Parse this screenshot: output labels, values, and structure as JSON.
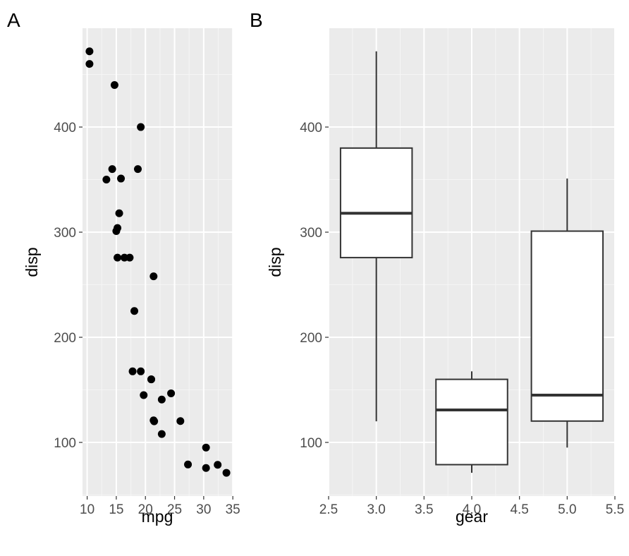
{
  "figure": {
    "panel_labels": [
      "A",
      "B"
    ]
  },
  "colors": {
    "panel_background": "#ebebeb",
    "grid_major": "#ffffff",
    "grid_minor": "#f5f5f5",
    "point": "#000000",
    "box_fill": "#ffffff",
    "box_line": "#333333",
    "tick_text": "#4d4d4d"
  },
  "chart_data": [
    {
      "id": "A",
      "type": "scatter",
      "title": "A",
      "xlabel": "mpg",
      "ylabel": "disp",
      "xlim": [
        9.2,
        35.1
      ],
      "ylim": [
        49,
        494
      ],
      "x_ticks": [
        10,
        15,
        20,
        25,
        30,
        35
      ],
      "x_tick_labels": [
        "10",
        "15",
        "20",
        "25",
        "30",
        "35"
      ],
      "y_ticks": [
        100,
        200,
        300,
        400
      ],
      "y_tick_labels": [
        "100",
        "200",
        "300",
        "400"
      ],
      "grid": true,
      "points": [
        {
          "x": 21.0,
          "y": 160
        },
        {
          "x": 21.0,
          "y": 160
        },
        {
          "x": 22.8,
          "y": 108
        },
        {
          "x": 21.4,
          "y": 258
        },
        {
          "x": 18.7,
          "y": 360
        },
        {
          "x": 18.1,
          "y": 225
        },
        {
          "x": 14.3,
          "y": 360
        },
        {
          "x": 24.4,
          "y": 146.7
        },
        {
          "x": 22.8,
          "y": 140.8
        },
        {
          "x": 19.2,
          "y": 167.6
        },
        {
          "x": 17.8,
          "y": 167.6
        },
        {
          "x": 16.4,
          "y": 275.8
        },
        {
          "x": 17.3,
          "y": 275.8
        },
        {
          "x": 15.2,
          "y": 275.8
        },
        {
          "x": 10.4,
          "y": 472
        },
        {
          "x": 10.4,
          "y": 460
        },
        {
          "x": 14.7,
          "y": 440
        },
        {
          "x": 32.4,
          "y": 78.7
        },
        {
          "x": 30.4,
          "y": 75.7
        },
        {
          "x": 33.9,
          "y": 71.1
        },
        {
          "x": 21.5,
          "y": 120.1
        },
        {
          "x": 15.5,
          "y": 318
        },
        {
          "x": 15.2,
          "y": 304
        },
        {
          "x": 13.3,
          "y": 350
        },
        {
          "x": 19.2,
          "y": 400
        },
        {
          "x": 27.3,
          "y": 79
        },
        {
          "x": 26.0,
          "y": 120.3
        },
        {
          "x": 30.4,
          "y": 95.1
        },
        {
          "x": 15.8,
          "y": 351
        },
        {
          "x": 19.7,
          "y": 145
        },
        {
          "x": 15.0,
          "y": 301
        },
        {
          "x": 21.4,
          "y": 121
        }
      ]
    },
    {
      "id": "B",
      "type": "box",
      "title": "B",
      "xlabel": "gear",
      "ylabel": "disp",
      "xlim": [
        2.5,
        5.5
      ],
      "ylim": [
        49,
        494
      ],
      "x_ticks": [
        2.5,
        3.0,
        3.5,
        4.0,
        4.5,
        5.0,
        5.5
      ],
      "x_tick_labels": [
        "2.5",
        "3.0",
        "3.5",
        "4.0",
        "4.5",
        "5.0",
        "5.5"
      ],
      "y_ticks": [
        100,
        200,
        300,
        400
      ],
      "y_tick_labels": [
        "100",
        "200",
        "300",
        "400"
      ],
      "grid": true,
      "box_half_width": 0.375,
      "boxes": [
        {
          "x": 3,
          "whisker_low": 120.1,
          "q1": 275.8,
          "median": 318,
          "q3": 380,
          "whisker_high": 472
        },
        {
          "x": 4,
          "whisker_low": 71.1,
          "q1": 78.85,
          "median": 130.9,
          "q3": 160,
          "whisker_high": 167.6
        },
        {
          "x": 5,
          "whisker_low": 95.1,
          "q1": 120.3,
          "median": 145,
          "q3": 301,
          "whisker_high": 351
        }
      ]
    }
  ]
}
